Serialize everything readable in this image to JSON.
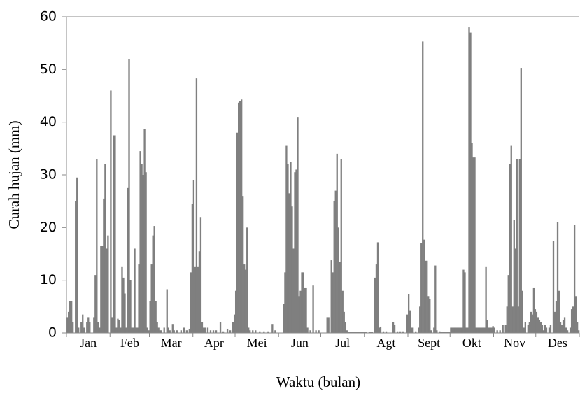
{
  "chart_data": {
    "type": "bar",
    "xlabel": "Waktu (bulan)",
    "ylabel": "Curah hujan (mm)",
    "color": "#7f7f7f",
    "month_labels": [
      "Jan",
      "Feb",
      "Mar",
      "Apr",
      "Mei",
      "Jun",
      "Jul",
      "Agt",
      "Sept",
      "Okt",
      "Nov",
      "Des"
    ],
    "xlim": [
      0,
      365
    ],
    "xticks": [
      0,
      31,
      59,
      90,
      120,
      151,
      181,
      212,
      243,
      273,
      304,
      334,
      365
    ],
    "ylim": [
      0,
      60
    ],
    "yticks": [
      0,
      10,
      20,
      30,
      40,
      50,
      60
    ],
    "values": [
      3,
      4,
      6,
      6,
      2,
      0,
      25,
      29.5,
      1,
      0,
      2,
      3.5,
      1,
      0,
      2,
      3,
      2,
      0,
      0,
      3,
      11,
      33,
      2,
      1,
      16.5,
      16.5,
      25.5,
      32,
      16,
      18.5,
      0,
      46,
      3,
      37.5,
      37.5,
      1,
      2.7,
      2.5,
      1,
      12.5,
      10.5,
      7.5,
      1,
      27.5,
      52,
      10,
      1,
      1,
      16,
      1,
      1,
      13,
      34.5,
      32,
      30,
      38.7,
      30.5,
      1,
      0.5,
      6,
      13,
      18.5,
      20.3,
      6,
      2,
      1,
      0.5,
      0.5,
      0,
      1,
      0,
      8.3,
      1,
      0.5,
      0,
      1.7,
      0.5,
      0,
      0.5,
      0,
      0,
      0.5,
      0,
      1,
      0,
      0.5,
      0,
      0.8,
      11.5,
      24.5,
      29,
      12.5,
      48.3,
      12.5,
      15.5,
      22,
      2,
      1,
      1,
      0,
      1,
      0,
      0.5,
      0,
      0.5,
      0,
      0.5,
      0,
      0,
      2,
      0,
      0.3,
      0,
      0,
      0.8,
      0,
      0.5,
      0,
      2,
      3.5,
      8,
      38,
      43.7,
      44,
      44.3,
      26,
      13,
      12,
      20,
      1,
      0.5,
      0,
      0.5,
      0,
      0.5,
      0,
      0,
      0.3,
      0,
      0,
      0.3,
      0,
      0,
      0.3,
      0,
      0,
      1.7,
      0,
      0.5,
      0,
      0,
      0,
      0,
      0,
      5.5,
      11.5,
      35.5,
      32,
      26.5,
      32.5,
      24,
      16,
      30.5,
      31,
      41,
      7,
      8,
      11.5,
      11.5,
      8.5,
      8.5,
      1,
      0,
      0.5,
      0,
      9,
      0,
      0.5,
      0,
      0.5,
      0,
      0,
      0,
      0,
      0,
      3,
      3,
      0,
      13.8,
      11.5,
      25,
      27,
      34,
      20,
      13.5,
      33,
      8,
      4,
      2,
      0.5,
      0.2,
      0.2,
      0.2,
      0.2,
      0.2,
      0.2,
      0.2,
      0.2,
      0.2,
      0.2,
      0.2,
      0.2,
      0.2,
      0.2,
      0,
      0.2,
      0.2,
      0.2,
      0,
      10.5,
      13,
      17.2,
      1,
      1.2,
      0,
      0.3,
      0,
      0.3,
      0,
      0,
      0,
      0,
      2,
      1.5,
      0,
      0.3,
      0,
      0.3,
      0,
      0.3,
      0,
      0,
      3.5,
      7.3,
      4.3,
      1,
      1,
      0,
      0.3,
      0,
      1,
      5,
      17,
      55.3,
      17.7,
      13.7,
      13.7,
      7,
      6.5,
      0.5,
      0,
      1,
      12.8,
      0.5,
      0,
      0.3,
      0.2,
      0.2,
      0.2,
      0.2,
      0.2,
      0.2,
      0.2,
      1,
      1,
      1,
      1,
      1,
      1,
      1,
      1,
      1,
      12,
      11.5,
      1,
      1,
      58,
      57,
      36,
      33.3,
      33.3,
      1,
      1,
      1,
      1,
      1,
      1,
      1,
      12.5,
      2.5,
      1,
      1,
      1,
      1.3,
      1,
      0,
      0.5,
      0,
      0.5,
      0,
      1.5,
      0,
      1.5,
      5,
      11,
      32,
      35.5,
      5,
      21.5,
      16,
      33,
      5,
      33,
      50.3,
      8,
      1,
      2,
      0,
      1.5,
      2,
      4,
      3.5,
      8.5,
      4.5,
      4,
      3,
      2.5,
      2,
      1.5,
      0.5,
      1.5,
      1,
      0,
      1,
      1.5,
      0,
      17.5,
      4,
      6,
      21,
      8,
      2,
      1.5,
      2.5,
      3,
      1,
      0.5,
      0,
      1,
      4.5,
      5,
      20.5,
      7,
      2,
      0.5
    ]
  }
}
